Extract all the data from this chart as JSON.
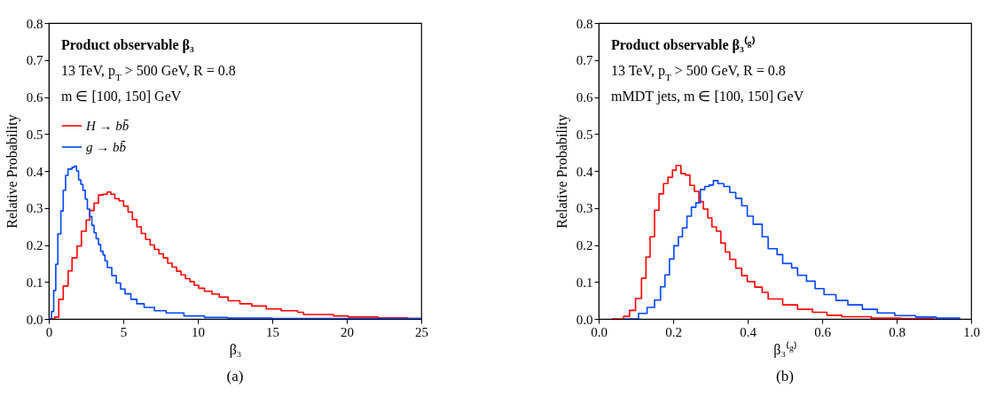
{
  "chart_data": [
    {
      "type": "step",
      "title": "Product observable β₃",
      "subtitle": "13 TeV, p$_{T}$ > 500 GeV, R = 0.8",
      "annotations": [
        "m ∈ [100, 150] GeV",
        "(a)"
      ],
      "xlabel": "β₃",
      "ylabel": "Relative Probability",
      "xlim": [
        0,
        25
      ],
      "ylim": [
        0,
        0.8
      ],
      "xticks": [
        0,
        5,
        10,
        15,
        20,
        25
      ],
      "yticks": [
        {
          "value": 0,
          "label": "0.0"
        },
        0.1,
        0.2,
        0.3,
        0.4,
        0.5,
        0.6,
        0.7,
        0.8
      ],
      "legend": "top left",
      "series": [
        {
          "name": "H → bb̄",
          "color": "#ff0000",
          "x": [
            0,
            0.4,
            0.67,
            0.97,
            1.3,
            1.56,
            1.9,
            2.19,
            2.51,
            2.75,
            3.04,
            3.34,
            3.64,
            3.93,
            4.17,
            4.43,
            4.72,
            5.02,
            5.32,
            5.61,
            5.91,
            6.21,
            6.5,
            6.8,
            7.09,
            7.39,
            7.69,
            7.98,
            8.28,
            8.58,
            8.87,
            9.17,
            9.47,
            9.76,
            10.06,
            10.45,
            10.95,
            11.44,
            12.04,
            12.83,
            13.62,
            14.6,
            15.6,
            16.7,
            17.1,
            19.1,
            20.1,
            22.1,
            24.1,
            25
          ],
          "values": [
            0,
            0.005,
            0.053,
            0.089,
            0.13,
            0.165,
            0.197,
            0.237,
            0.267,
            0.293,
            0.313,
            0.335,
            0.337,
            0.343,
            0.337,
            0.325,
            0.319,
            0.305,
            0.289,
            0.269,
            0.249,
            0.231,
            0.215,
            0.2,
            0.188,
            0.176,
            0.165,
            0.151,
            0.14,
            0.129,
            0.119,
            0.109,
            0.101,
            0.091,
            0.083,
            0.075,
            0.067,
            0.059,
            0.049,
            0.041,
            0.035,
            0.027,
            0.022,
            0.018,
            0.012,
            0.008,
            0.005,
            0.003,
            0.001,
            0
          ]
        },
        {
          "name": "g → bb̄",
          "color": "#0044ff",
          "x": [
            0,
            0.18,
            0.33,
            0.47,
            0.61,
            0.81,
            0.97,
            1.13,
            1.29,
            1.56,
            1.72,
            1.86,
            2,
            2.15,
            2.29,
            2.45,
            2.59,
            2.75,
            2.89,
            3.04,
            3.18,
            3.34,
            3.48,
            3.64,
            3.77,
            3.93,
            4.23,
            4.53,
            4.82,
            5.12,
            5.51,
            5.91,
            6.4,
            7.09,
            7.88,
            9.07,
            10.45,
            12,
            15,
            25
          ],
          "values": [
            0,
            0.02,
            0.077,
            0.148,
            0.23,
            0.292,
            0.348,
            0.388,
            0.405,
            0.41,
            0.413,
            0.4,
            0.376,
            0.364,
            0.348,
            0.324,
            0.297,
            0.277,
            0.253,
            0.233,
            0.217,
            0.201,
            0.183,
            0.173,
            0.157,
            0.139,
            0.117,
            0.097,
            0.081,
            0.068,
            0.053,
            0.041,
            0.031,
            0.022,
            0.016,
            0.008,
            0.004,
            0.002,
            0.001,
            0
          ]
        }
      ]
    },
    {
      "type": "step",
      "title": "Product observable β₃⁽ᵍ⁾",
      "subtitle": "13 TeV, p$_{T}$ > 500 GeV, R = 0.8",
      "annotations": [
        "mMDT jets, m ∈ [100, 150] GeV",
        "(b)"
      ],
      "xlabel": "β₃⁽ᵍ⁾",
      "ylabel": "Relative Probability",
      "xlim": [
        0,
        1
      ],
      "ylim": [
        0,
        0.8
      ],
      "xticks": [
        {
          "value": 0,
          "label": "0.0"
        },
        0.2,
        0.4,
        0.6,
        0.8,
        {
          "value": 1,
          "label": "1.0"
        }
      ],
      "yticks": [
        {
          "value": 0,
          "label": "0.0"
        },
        0.1,
        0.2,
        0.3,
        0.4,
        0.5,
        0.6,
        0.7,
        0.8
      ],
      "legend": "top left",
      "series": [
        {
          "name": "H → bb̄",
          "color": "#ff0000",
          "x": [
            0.036,
            0.067,
            0.083,
            0.099,
            0.115,
            0.127,
            0.138,
            0.15,
            0.162,
            0.174,
            0.186,
            0.198,
            0.208,
            0.221,
            0.233,
            0.245,
            0.257,
            0.269,
            0.281,
            0.293,
            0.304,
            0.316,
            0.328,
            0.34,
            0.352,
            0.368,
            0.384,
            0.399,
            0.419,
            0.439,
            0.455,
            0.494,
            0.534,
            0.574,
            0.613,
            0.653,
            0.732,
            0.811,
            0.9
          ],
          "values": [
            0,
            0.007,
            0.023,
            0.055,
            0.11,
            0.167,
            0.222,
            0.294,
            0.338,
            0.366,
            0.383,
            0.402,
            0.415,
            0.393,
            0.389,
            0.361,
            0.345,
            0.317,
            0.297,
            0.273,
            0.249,
            0.237,
            0.205,
            0.181,
            0.161,
            0.137,
            0.117,
            0.101,
            0.086,
            0.072,
            0.054,
            0.038,
            0.026,
            0.018,
            0.01,
            0.006,
            0.002,
            0.001,
            0
          ]
        },
        {
          "name": "g → bb̄",
          "color": "#0044ff",
          "x": [
            0.067,
            0.107,
            0.13,
            0.15,
            0.166,
            0.178,
            0.19,
            0.202,
            0.214,
            0.225,
            0.237,
            0.249,
            0.261,
            0.273,
            0.285,
            0.297,
            0.308,
            0.32,
            0.336,
            0.352,
            0.368,
            0.384,
            0.399,
            0.415,
            0.439,
            0.455,
            0.479,
            0.494,
            0.518,
            0.534,
            0.558,
            0.581,
            0.605,
            0.637,
            0.669,
            0.708,
            0.748,
            0.795,
            0.851,
            0.906,
            0.969
          ],
          "values": [
            0,
            0.015,
            0.031,
            0.051,
            0.087,
            0.119,
            0.162,
            0.198,
            0.222,
            0.246,
            0.278,
            0.302,
            0.314,
            0.35,
            0.358,
            0.362,
            0.374,
            0.366,
            0.358,
            0.342,
            0.326,
            0.306,
            0.278,
            0.256,
            0.222,
            0.19,
            0.174,
            0.15,
            0.138,
            0.118,
            0.102,
            0.082,
            0.066,
            0.05,
            0.038,
            0.026,
            0.016,
            0.009,
            0.005,
            0.002,
            0
          ]
        }
      ]
    }
  ]
}
